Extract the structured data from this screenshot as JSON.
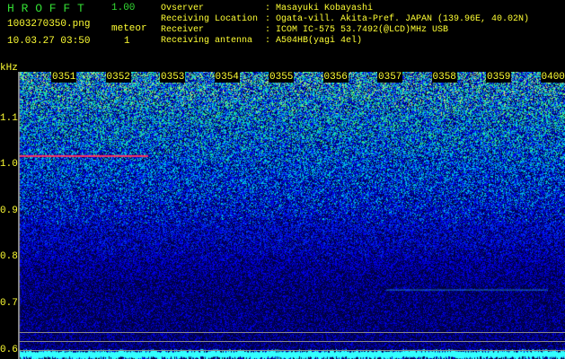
{
  "header": {
    "app_name": "H R O F F T",
    "version": "1.00",
    "filename": "1003270350.png",
    "datetime": "10.03.27 03:50",
    "meteor_label": "meteor",
    "meteor_count": "1",
    "info": [
      {
        "label": "Ovserver",
        "value": ": Masayuki Kobayashi"
      },
      {
        "label": "Receiving Location",
        "value": ": Ogata-vill. Akita-Pref. JAPAN (139.96E, 40.02N)"
      },
      {
        "label": "Receiver",
        "value": ": ICOM IC-575 53.7492(@LCD)MHz USB"
      },
      {
        "label": "Receiving antenna",
        "value": ": A504HB(yagi 4el)"
      }
    ]
  },
  "chart_data": {
    "type": "heatmap",
    "ylabel": "kHz",
    "x_ticks": [
      "0351",
      "0352",
      "0353",
      "0354",
      "0355",
      "0356",
      "0357",
      "0358",
      "0359",
      "0400"
    ],
    "y_ticks": [
      "1.1",
      "1.0",
      "0.9",
      "0.8",
      "0.7",
      "0.6"
    ],
    "ylim": [
      0.58,
      1.2
    ],
    "colors": {
      "low": "#000033",
      "mid": "#0033ff",
      "high": "#33ff99",
      "meteor": "#ff3366",
      "reference": "#33ccff"
    },
    "features": [
      {
        "kind": "meteor-echo",
        "freq_khz": 1.02,
        "time_range": [
          "0350",
          "0352.5"
        ]
      },
      {
        "kind": "carrier",
        "freq_khz": 0.73,
        "time_range": [
          "0357",
          "0400"
        ]
      }
    ]
  }
}
